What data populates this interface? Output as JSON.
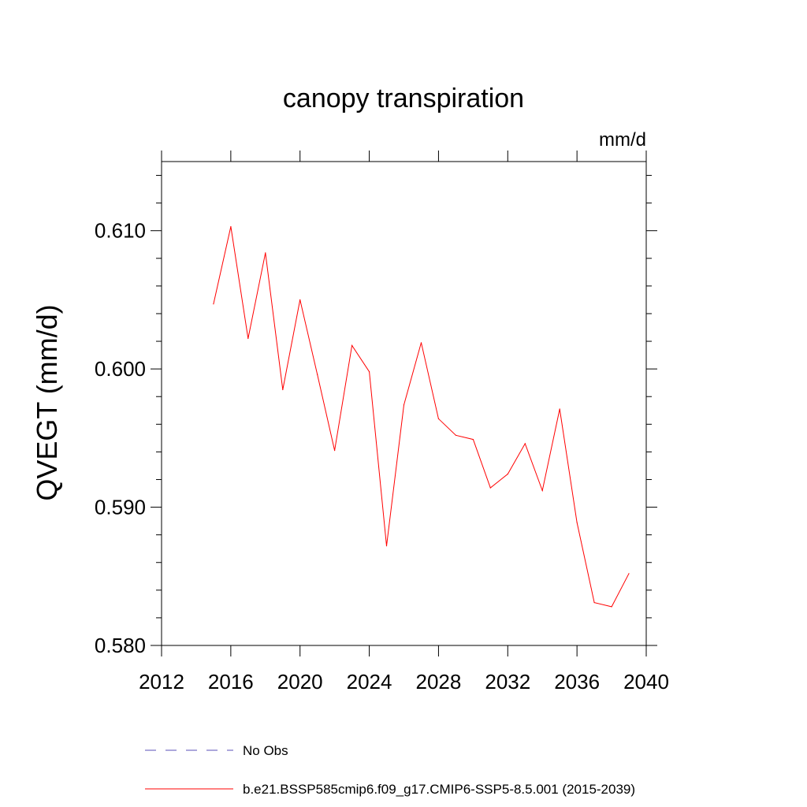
{
  "chart_data": {
    "type": "line",
    "title": "canopy transpiration",
    "units": "mm/d",
    "ylabel": "QVEGT  (mm/d)",
    "xlabel": "",
    "xlim": [
      2012,
      2040
    ],
    "ylim": [
      0.58,
      0.615
    ],
    "x_ticks": [
      2012,
      2016,
      2020,
      2024,
      2028,
      2032,
      2036,
      2040
    ],
    "x_tick_labels": [
      "2012",
      "2016",
      "2020",
      "2024",
      "2028",
      "2032",
      "2036",
      "2040"
    ],
    "y_ticks": [
      0.58,
      0.59,
      0.6,
      0.61
    ],
    "y_tick_labels": [
      "0.580",
      "0.590",
      "0.600",
      "0.610"
    ],
    "grid": false,
    "legend_placement": "bottom",
    "series": [
      {
        "name": "b.e21.BSSP585cmip6.f09_g17.CMIP6-SSP5-8.5.001 (2015-2039)",
        "color": "#ff0000",
        "style": "solid",
        "x": [
          2015,
          2016,
          2017,
          2018,
          2019,
          2020,
          2021,
          2022,
          2023,
          2024,
          2025,
          2026,
          2027,
          2028,
          2029,
          2030,
          2031,
          2032,
          2033,
          2034,
          2035,
          2036,
          2037,
          2038,
          2039
        ],
        "y": [
          0.6047,
          0.6103,
          0.6022,
          0.6084,
          0.5985,
          0.605,
          0.5996,
          0.5941,
          0.6017,
          0.5998,
          0.5872,
          0.5974,
          0.6019,
          0.5964,
          0.5952,
          0.5949,
          0.5914,
          0.5924,
          0.5946,
          0.5912,
          0.5971,
          0.5889,
          0.5831,
          0.5828,
          0.5852
        ]
      }
    ],
    "legend": [
      {
        "label": "No Obs",
        "color": "#5a4fb8",
        "style": "dashed"
      },
      {
        "label": "b.e21.BSSP585cmip6.f09_g17.CMIP6-SSP5-8.5.001 (2015-2039)",
        "color": "#ff0000",
        "style": "solid"
      }
    ]
  }
}
